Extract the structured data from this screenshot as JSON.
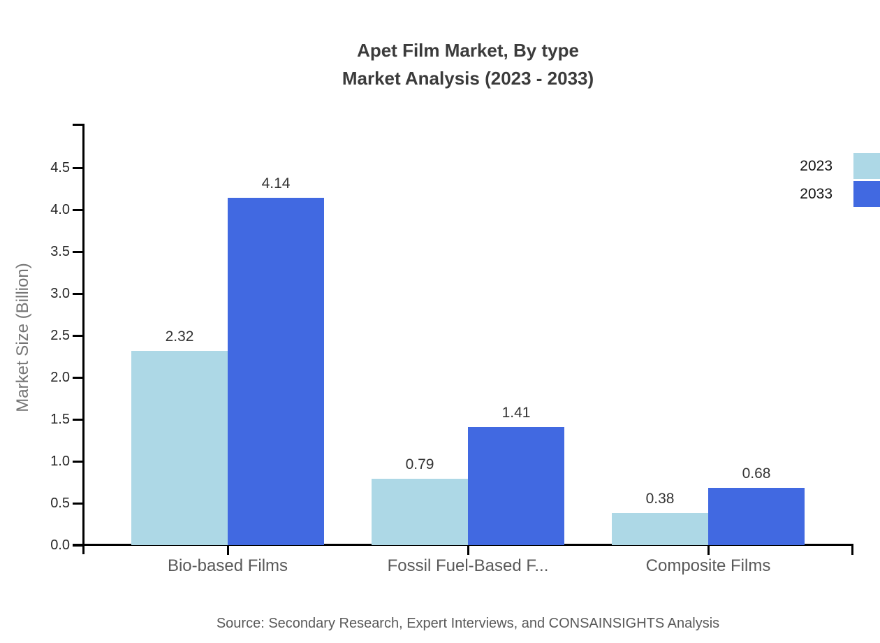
{
  "title": {
    "line1": "Apet Film Market, By type",
    "line2": "Market Analysis (2023 - 2033)"
  },
  "source_text": "Source: Secondary Research, Expert Interviews, and CONSAINSIGHTS Analysis",
  "chart_data": {
    "type": "bar",
    "title": "Apet Film Market, By type — Market Analysis (2023 - 2033)",
    "xlabel": "",
    "ylabel": "Market Size (Billion)",
    "categories": [
      "Bio-based Films",
      "Fossil Fuel-Based F...",
      "Composite Films"
    ],
    "series": [
      {
        "name": "2023",
        "color": "#ADD8E6",
        "values": [
          2.32,
          0.79,
          0.38
        ]
      },
      {
        "name": "2033",
        "color": "#4169E1",
        "values": [
          4.14,
          1.41,
          0.68
        ]
      }
    ],
    "value_labels": [
      "2.32",
      "4.14",
      "0.79",
      "1.41",
      "0.38",
      "0.68"
    ],
    "ylim": [
      0,
      5
    ],
    "ytick_step": 0.5,
    "ytick_labels": [
      "0.0",
      "0.5",
      "1.0",
      "1.5",
      "2.0",
      "2.5",
      "3.0",
      "3.5",
      "4.0",
      "4.5"
    ],
    "grid": false,
    "legend_position": "top-right",
    "colors": {
      "axis": "#000000",
      "title_text": "#3b3b3b",
      "tick_label_text": "#262626",
      "category_label_text": "#595959",
      "value_label_text": "#333333",
      "axis_title_text": "#757575",
      "source_text": "#595959"
    }
  }
}
